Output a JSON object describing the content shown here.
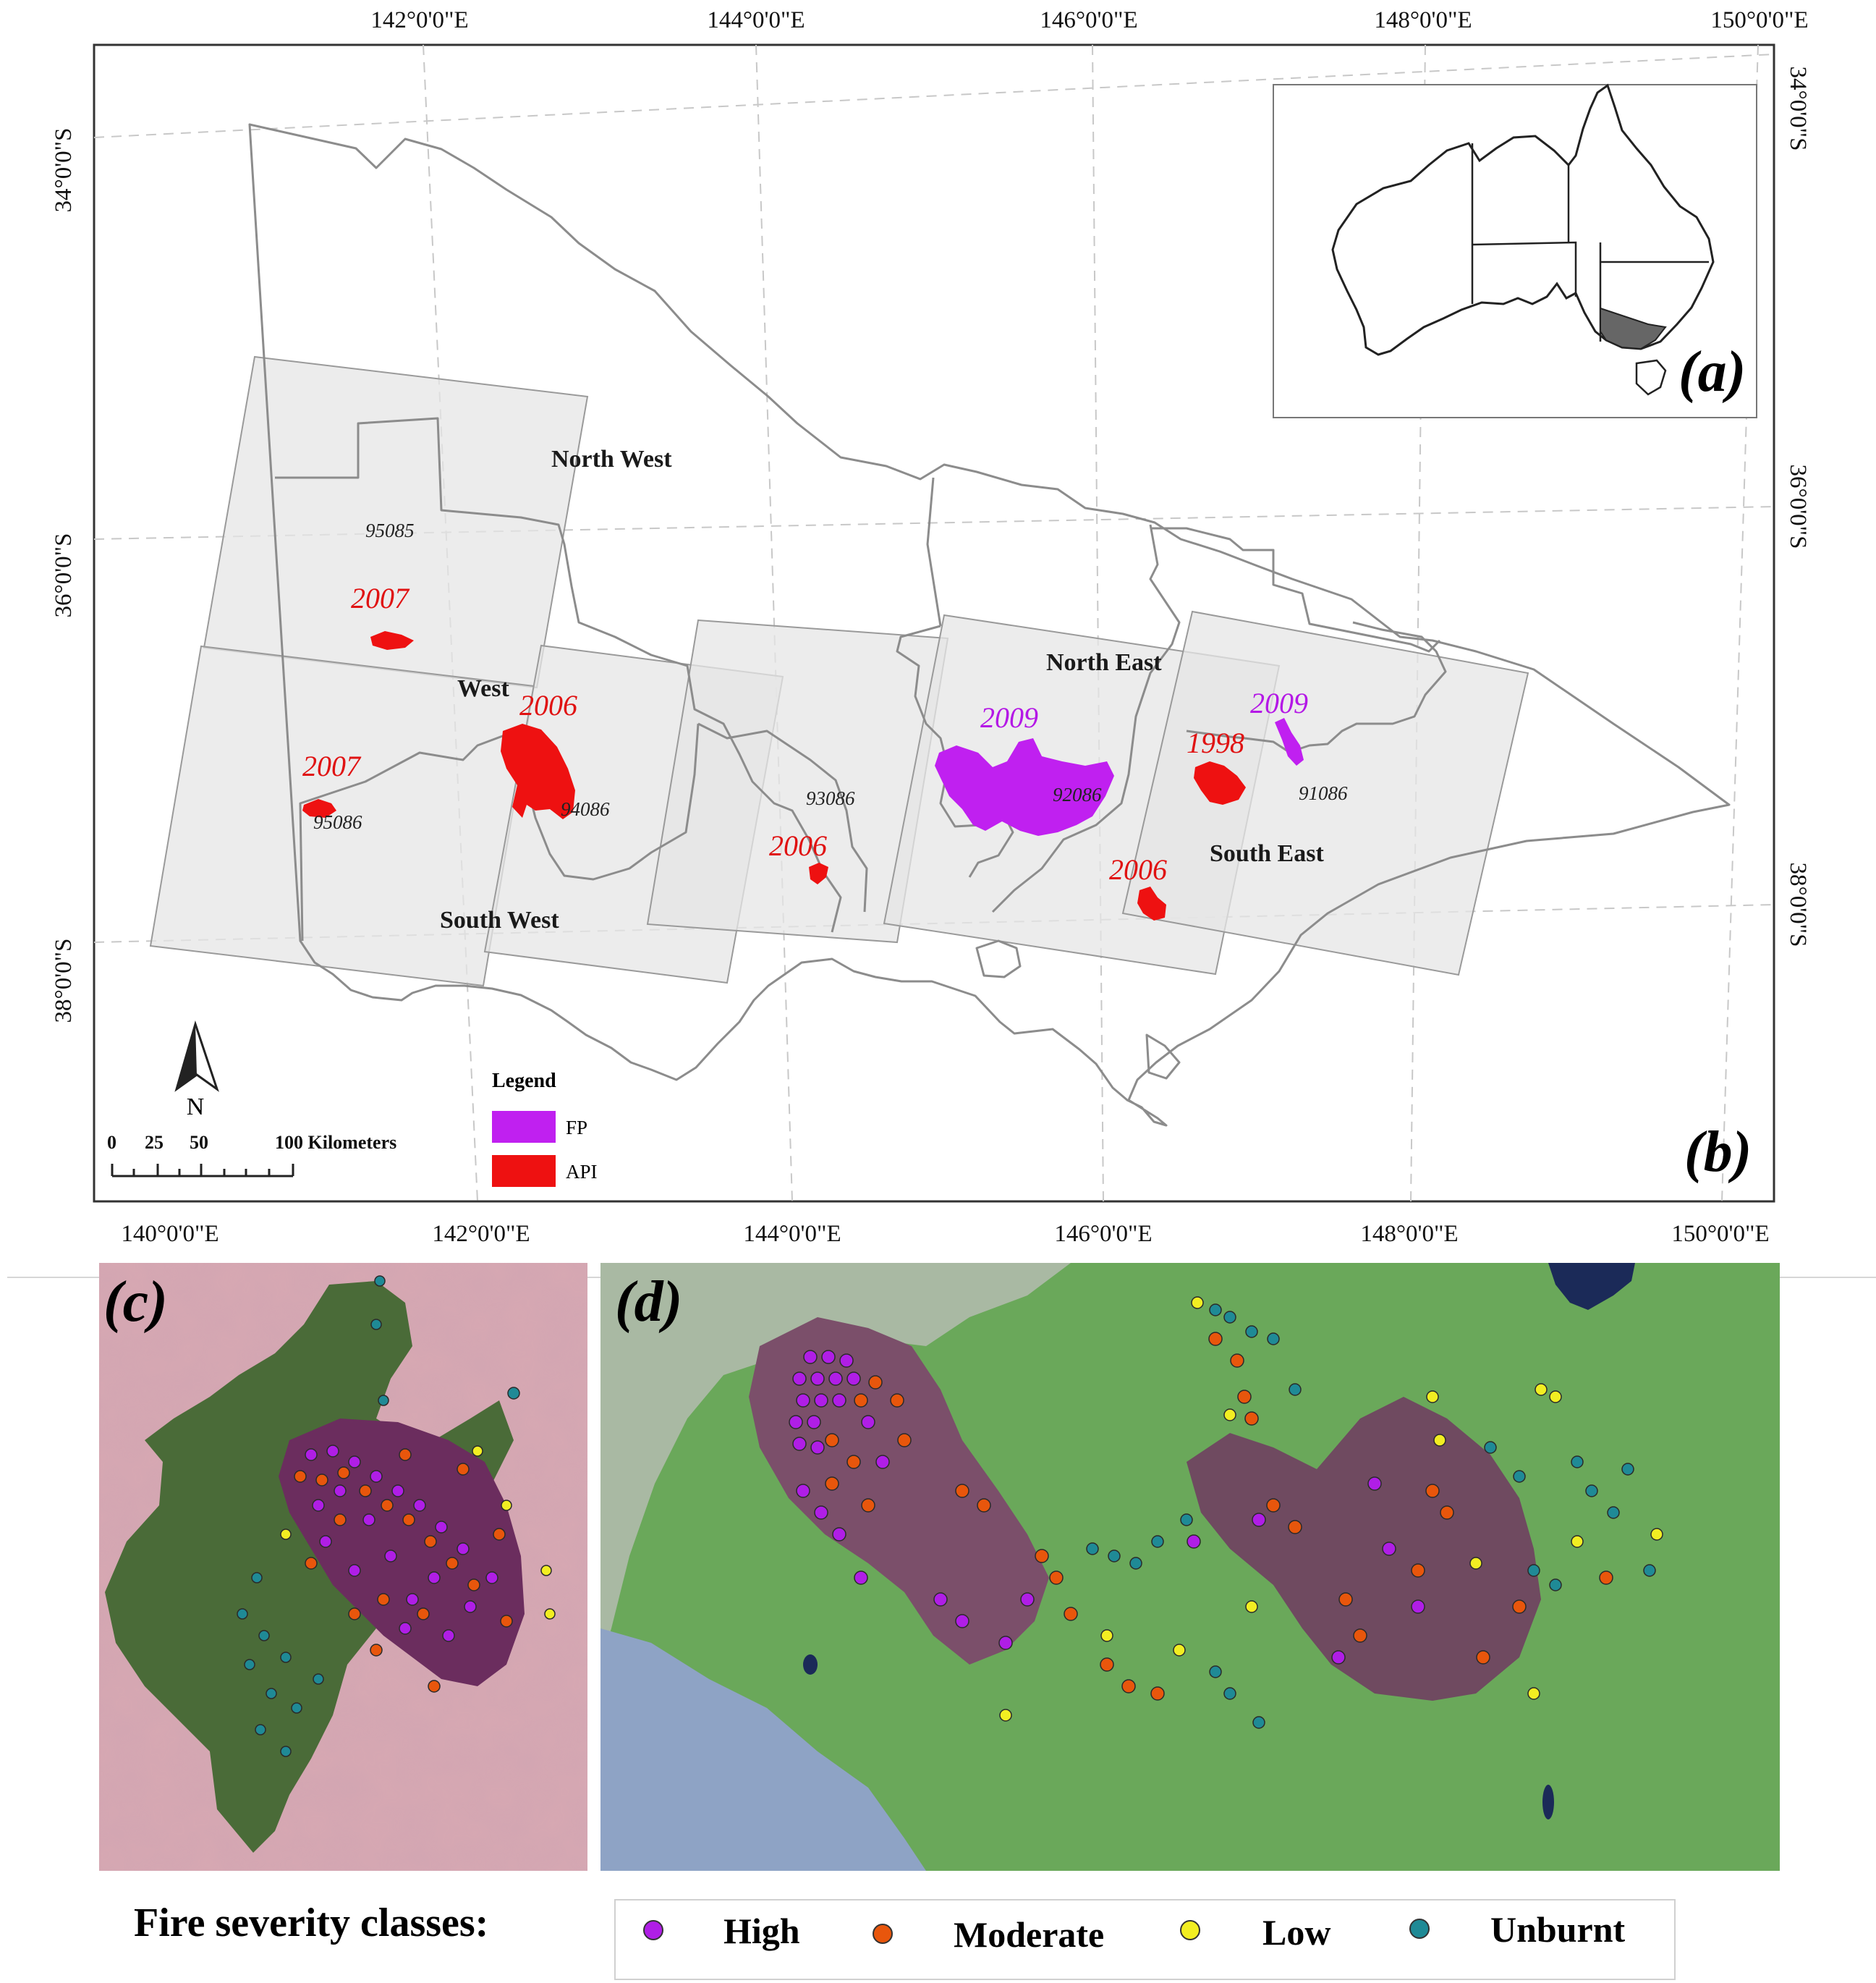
{
  "map_b": {
    "panel_label": "(b)",
    "top_ticks": [
      "142°0'0\"E",
      "144°0'0\"E",
      "146°0'0\"E",
      "148°0'0\"E",
      "150°0'0\"E"
    ],
    "bottom_ticks": [
      "140°0'0\"E",
      "142°0'0\"E",
      "144°0'0\"E",
      "146°0'0\"E",
      "148°0'0\"E",
      "150°0'0\"E"
    ],
    "left_ticks": [
      "34°0'0\"S",
      "36°0'0\"S",
      "38°0'0\"S"
    ],
    "right_ticks": [
      "34°0'0\"S",
      "36°0'0\"S",
      "38°0'0\"S"
    ],
    "regions": [
      "North West",
      "West",
      "North East",
      "South East",
      "South West"
    ],
    "scenes": [
      "95085",
      "95086",
      "94086",
      "93086",
      "92086",
      "91086"
    ],
    "fires": [
      {
        "year": "2007",
        "source": "API"
      },
      {
        "year": "2006",
        "source": "API"
      },
      {
        "year": "2007",
        "source": "API"
      },
      {
        "year": "2006",
        "source": "API"
      },
      {
        "year": "2009",
        "source": "FP"
      },
      {
        "year": "2009",
        "source": "FP"
      },
      {
        "year": "1998",
        "source": "API"
      },
      {
        "year": "2006",
        "source": "API"
      }
    ],
    "legend": {
      "title": "Legend",
      "items": [
        {
          "label": "FP",
          "color": "#c020f0"
        },
        {
          "label": "API",
          "color": "#ee1111"
        }
      ]
    },
    "north_label": "N",
    "scale_bar": {
      "ticks": [
        "0",
        "25",
        "50",
        "100 Kilometers"
      ]
    }
  },
  "inset_a": {
    "panel_label": "(a)",
    "highlight_color": "#666666"
  },
  "panel_c": {
    "panel_label": "(c)"
  },
  "panel_d": {
    "panel_label": "(d)"
  },
  "severity_legend": {
    "title": "Fire severity classes:",
    "classes": [
      {
        "label": "High",
        "color": "#b01ee6"
      },
      {
        "label": "Moderate",
        "color": "#e8560c"
      },
      {
        "label": "Low",
        "color": "#f2ee22"
      },
      {
        "label": "Unburnt",
        "color": "#1f8a96"
      }
    ]
  }
}
